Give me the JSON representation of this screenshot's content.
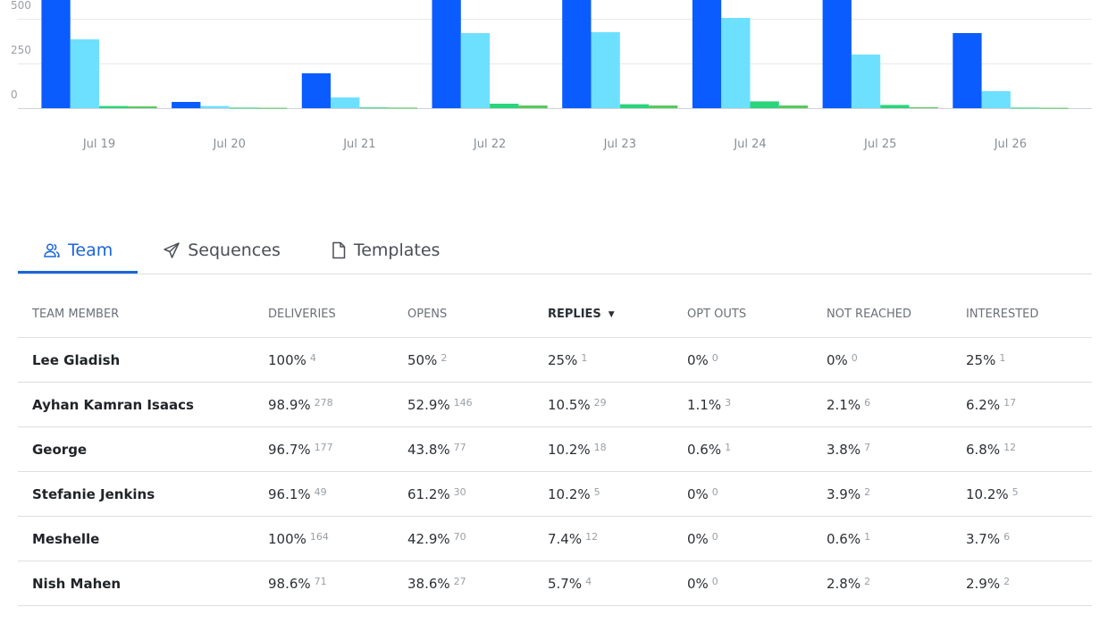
{
  "chart_data": {
    "type": "bar",
    "categories": [
      "Jul 19",
      "Jul 20",
      "Jul 21",
      "Jul 22",
      "Jul 23",
      "Jul 24",
      "Jul 25",
      "Jul 26"
    ],
    "series": [
      {
        "color": "#0a5cff",
        "values": [
          620,
          35,
          195,
          620,
          620,
          620,
          620,
          420
        ]
      },
      {
        "color": "#6ee0ff",
        "values": [
          385,
          12,
          60,
          420,
          425,
          505,
          300,
          95
        ]
      },
      {
        "color": "#2bd47a",
        "values": [
          12,
          3,
          4,
          25,
          22,
          38,
          18,
          3
        ]
      },
      {
        "color": "#56c95a",
        "values": [
          10,
          2,
          3,
          15,
          15,
          15,
          5,
          2
        ]
      }
    ],
    "yticks": [
      0,
      250,
      500
    ],
    "ylim": [
      0,
      600
    ],
    "grid": true,
    "title": "",
    "xlabel": "",
    "ylabel": ""
  },
  "tabs": [
    {
      "label": "Team",
      "icon": "users-icon",
      "active": true
    },
    {
      "label": "Sequences",
      "icon": "send-icon",
      "active": false
    },
    {
      "label": "Templates",
      "icon": "document-icon",
      "active": false
    }
  ],
  "table": {
    "columns": [
      "TEAM MEMBER",
      "DELIVERIES",
      "OPENS",
      "REPLIES",
      "OPT OUTS",
      "NOT REACHED",
      "INTERESTED"
    ],
    "sorted_column": "REPLIES",
    "rows": [
      {
        "member": "Lee Gladish",
        "cells": [
          [
            "100%",
            "4"
          ],
          [
            "50%",
            "2"
          ],
          [
            "25%",
            "1"
          ],
          [
            "0%",
            "0"
          ],
          [
            "0%",
            "0"
          ],
          [
            "25%",
            "1"
          ]
        ]
      },
      {
        "member": "Ayhan Kamran Isaacs",
        "cells": [
          [
            "98.9%",
            "278"
          ],
          [
            "52.9%",
            "146"
          ],
          [
            "10.5%",
            "29"
          ],
          [
            "1.1%",
            "3"
          ],
          [
            "2.1%",
            "6"
          ],
          [
            "6.2%",
            "17"
          ]
        ]
      },
      {
        "member": "George",
        "cells": [
          [
            "96.7%",
            "177"
          ],
          [
            "43.8%",
            "77"
          ],
          [
            "10.2%",
            "18"
          ],
          [
            "0.6%",
            "1"
          ],
          [
            "3.8%",
            "7"
          ],
          [
            "6.8%",
            "12"
          ]
        ]
      },
      {
        "member": "Stefanie Jenkins",
        "cells": [
          [
            "96.1%",
            "49"
          ],
          [
            "61.2%",
            "30"
          ],
          [
            "10.2%",
            "5"
          ],
          [
            "0%",
            "0"
          ],
          [
            "3.9%",
            "2"
          ],
          [
            "10.2%",
            "5"
          ]
        ]
      },
      {
        "member": "Meshelle",
        "cells": [
          [
            "100%",
            "164"
          ],
          [
            "42.9%",
            "70"
          ],
          [
            "7.4%",
            "12"
          ],
          [
            "0%",
            "0"
          ],
          [
            "0.6%",
            "1"
          ],
          [
            "3.7%",
            "6"
          ]
        ]
      },
      {
        "member": "Nish Mahen",
        "cells": [
          [
            "98.6%",
            "71"
          ],
          [
            "38.6%",
            "27"
          ],
          [
            "5.7%",
            "4"
          ],
          [
            "0%",
            "0"
          ],
          [
            "2.8%",
            "2"
          ],
          [
            "2.9%",
            "2"
          ]
        ]
      }
    ]
  }
}
